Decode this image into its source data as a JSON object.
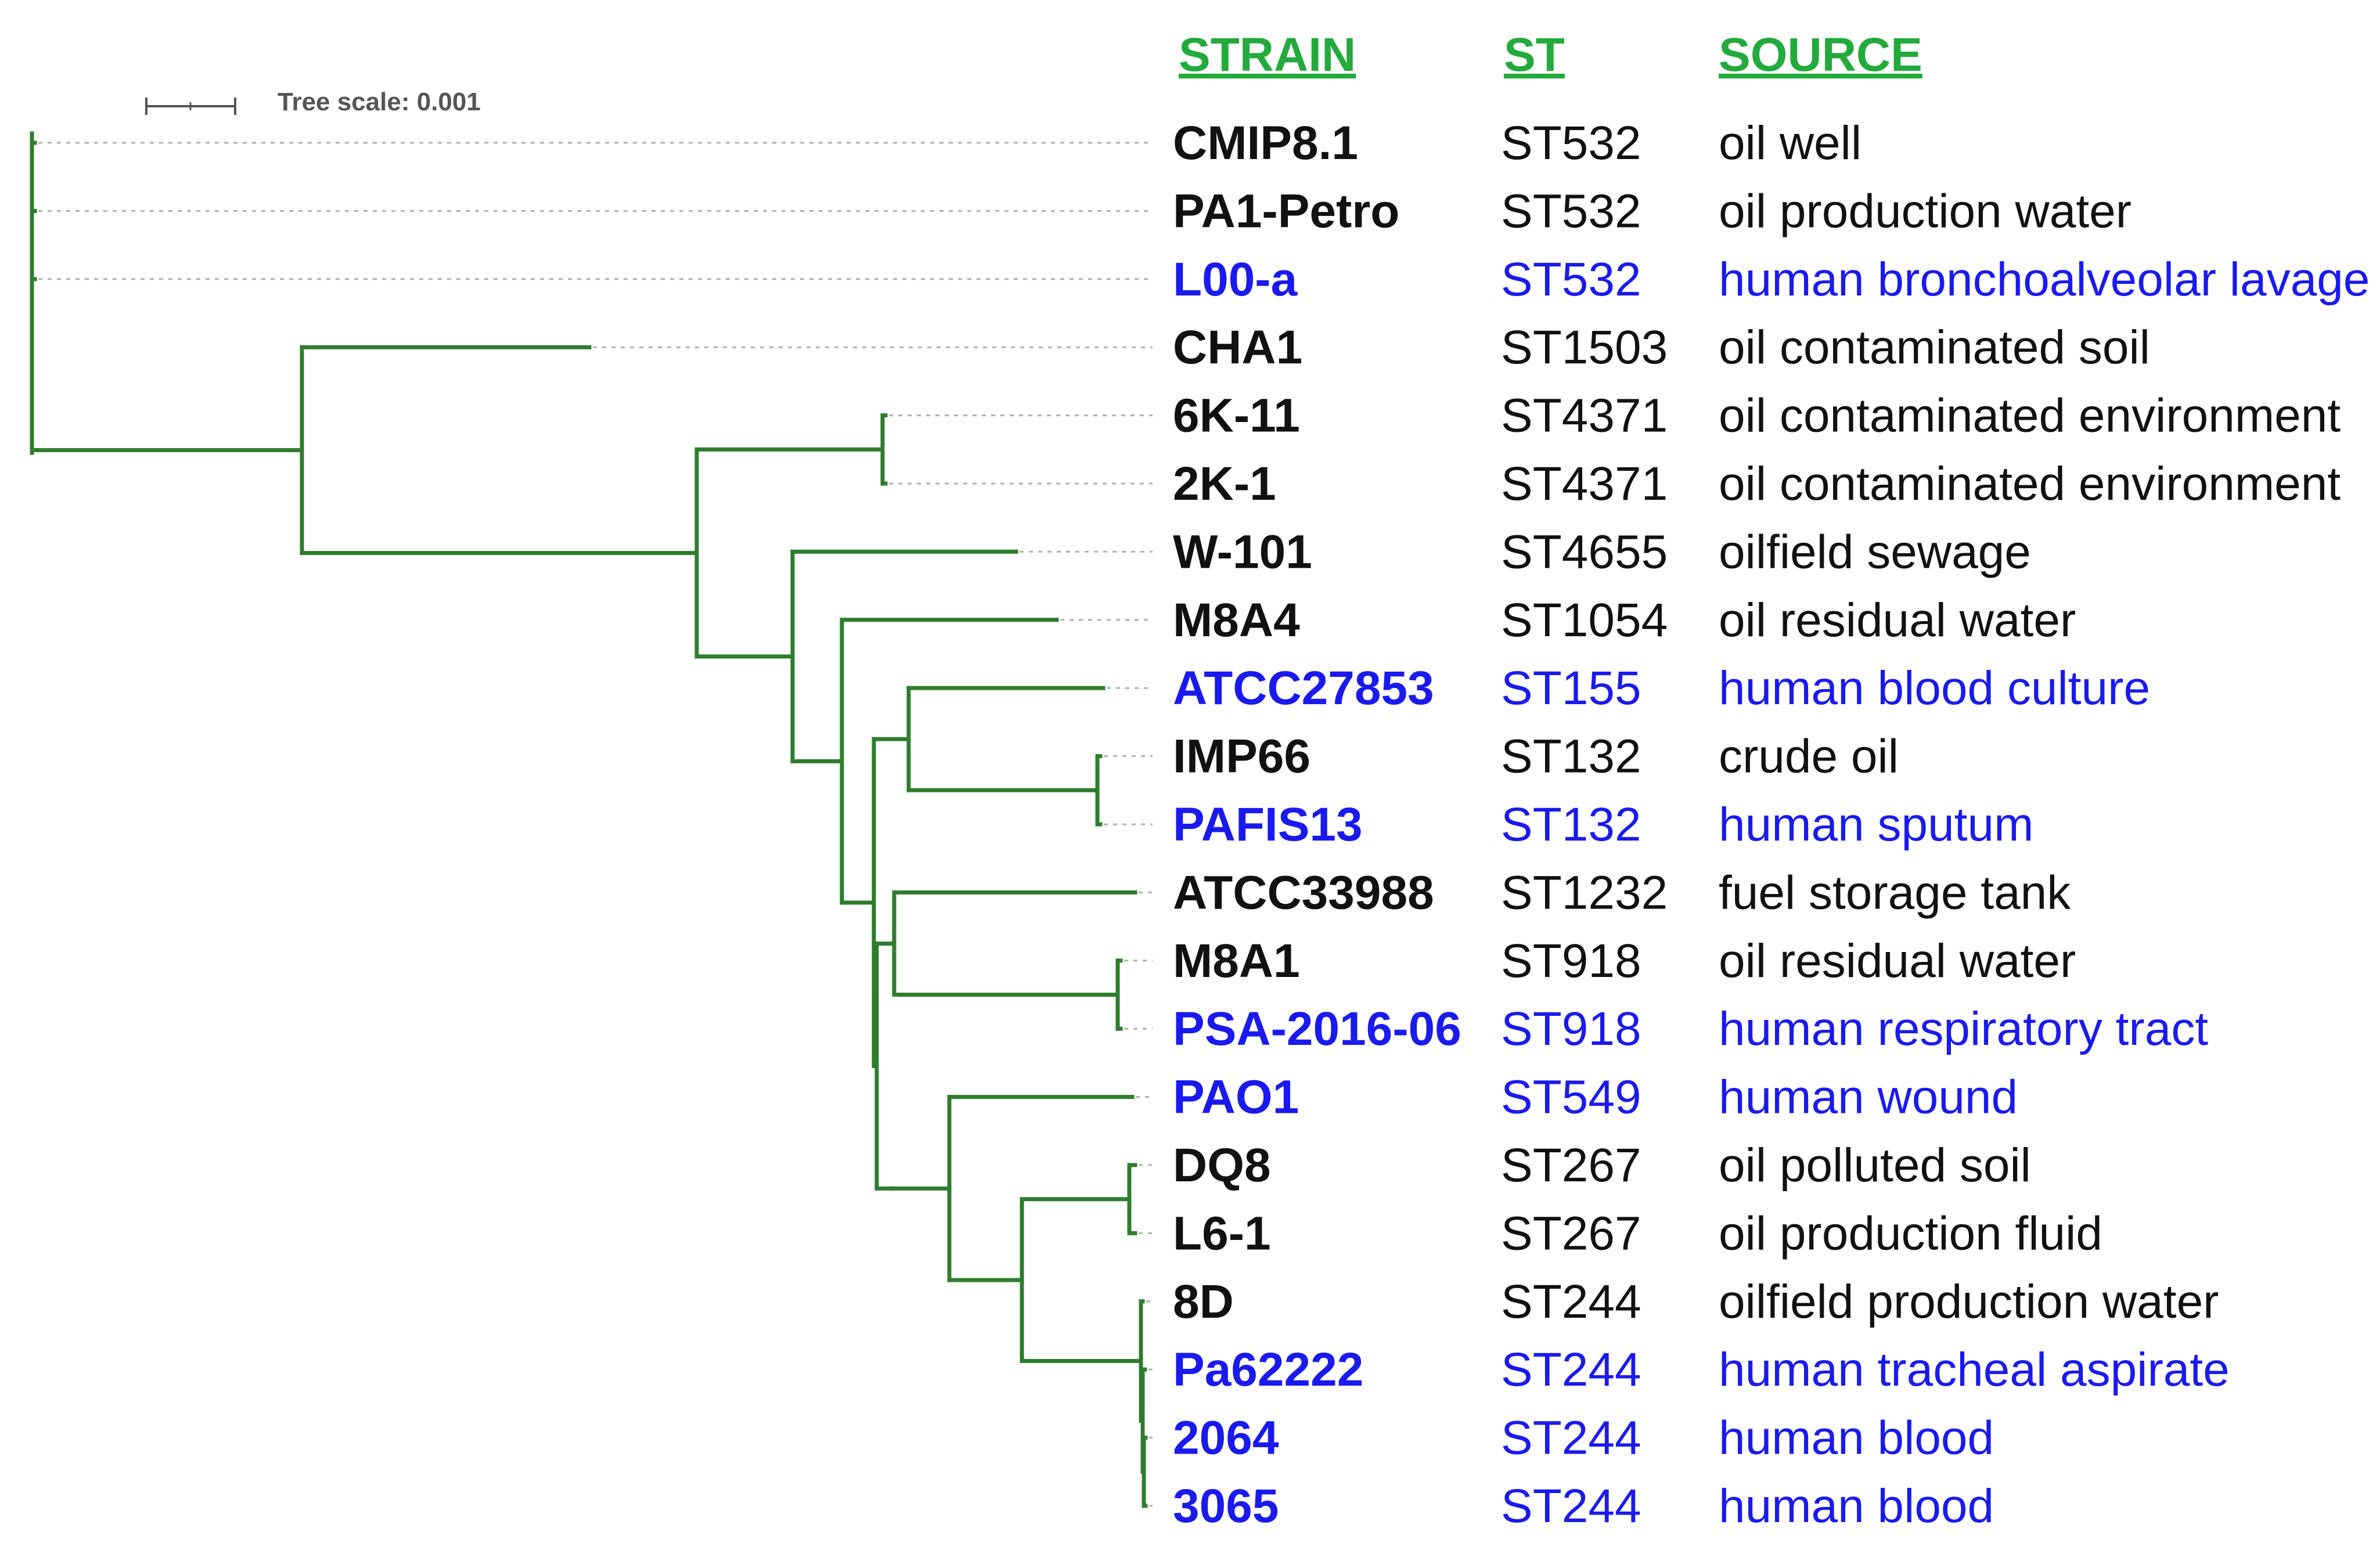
{
  "headers": {
    "strain": "STRAIN",
    "st": "ST",
    "source": "SOURCE"
  },
  "tree_scale": {
    "label": "Tree scale: 0.001",
    "value": 0.001
  },
  "colors": {
    "header": "#22aa3c",
    "branch": "#2e7d2e",
    "environmental": "#111111",
    "clinical": "#1a1aee",
    "leader_line": "#b0b0b0",
    "scale_bar": "#555555"
  },
  "rows": [
    {
      "strain": "CMIP8.1",
      "st": "ST532",
      "source": "oil well",
      "group": "environmental"
    },
    {
      "strain": "PA1-Petro",
      "st": "ST532",
      "source": "oil production water",
      "group": "environmental"
    },
    {
      "strain": "L00-a",
      "st": "ST532",
      "source": "human bronchoalveolar lavage",
      "group": "clinical"
    },
    {
      "strain": "CHA1",
      "st": "ST1503",
      "source": "oil contaminated soil",
      "group": "environmental"
    },
    {
      "strain": "6K-11",
      "st": "ST4371",
      "source": "oil contaminated environment",
      "group": "environmental"
    },
    {
      "strain": "2K-1",
      "st": "ST4371",
      "source": "oil contaminated environment",
      "group": "environmental"
    },
    {
      "strain": "W-101",
      "st": "ST4655",
      "source": "oilfield sewage",
      "group": "environmental"
    },
    {
      "strain": "M8A4",
      "st": "ST1054",
      "source": "oil residual water",
      "group": "environmental"
    },
    {
      "strain": "ATCC27853",
      "st": "ST155",
      "source": "human blood culture",
      "group": "clinical"
    },
    {
      "strain": "IMP66",
      "st": "ST132",
      "source": "crude oil",
      "group": "environmental"
    },
    {
      "strain": "PAFIS13",
      "st": "ST132",
      "source": "human sputum",
      "group": "clinical"
    },
    {
      "strain": "ATCC33988",
      "st": "ST1232",
      "source": "fuel storage tank",
      "group": "environmental"
    },
    {
      "strain": "M8A1",
      "st": "ST918",
      "source": "oil residual water",
      "group": "environmental"
    },
    {
      "strain": "PSA-2016-06",
      "st": "ST918",
      "source": "human respiratory tract",
      "group": "clinical"
    },
    {
      "strain": "PAO1",
      "st": "ST549",
      "source": "human wound",
      "group": "clinical"
    },
    {
      "strain": "DQ8",
      "st": "ST267",
      "source": "oil polluted soil",
      "group": "environmental"
    },
    {
      "strain": "L6-1",
      "st": "ST267",
      "source": "oil production fluid",
      "group": "environmental"
    },
    {
      "strain": "8D",
      "st": "ST244",
      "source": "oilfield production water",
      "group": "environmental"
    },
    {
      "strain": "Pa62222",
      "st": "ST244",
      "source": "human tracheal aspirate",
      "group": "clinical"
    },
    {
      "strain": "2064",
      "st": "ST244",
      "source": "human blood",
      "group": "clinical"
    },
    {
      "strain": "3065",
      "st": "ST244",
      "source": "human blood",
      "group": "clinical"
    }
  ]
}
